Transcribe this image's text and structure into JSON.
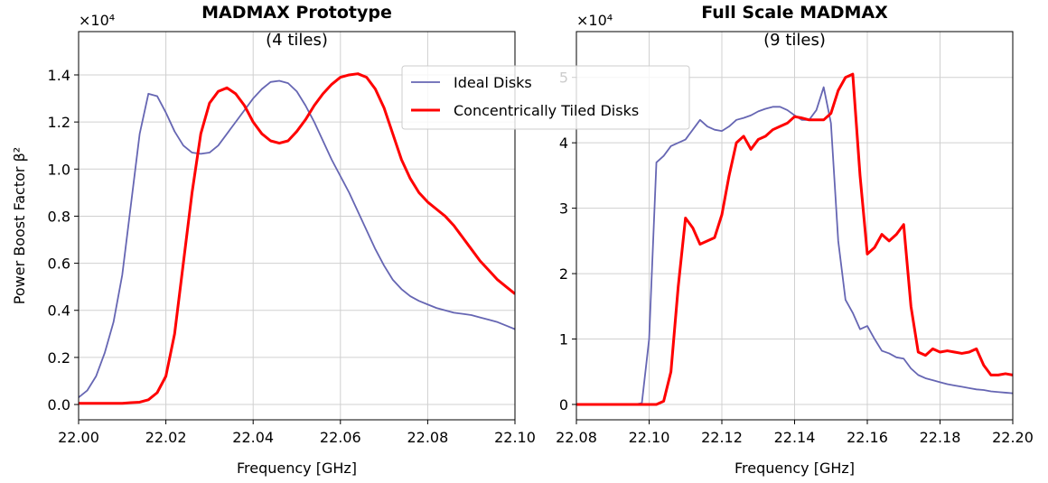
{
  "chart_data": [
    {
      "type": "line",
      "title": "MADMAX Prototype",
      "subtitle": "(4 tiles)",
      "xlabel": "Frequency [GHz]",
      "ylabel": "Power Boost Factor β²",
      "multiplier": "×10⁴",
      "x": [
        22.0,
        22.002,
        22.004,
        22.006,
        22.008,
        22.01,
        22.012,
        22.014,
        22.016,
        22.018,
        22.02,
        22.022,
        22.024,
        22.026,
        22.028,
        22.03,
        22.032,
        22.034,
        22.036,
        22.038,
        22.04,
        22.042,
        22.044,
        22.046,
        22.048,
        22.05,
        22.052,
        22.054,
        22.056,
        22.058,
        22.06,
        22.062,
        22.064,
        22.066,
        22.068,
        22.07,
        22.072,
        22.074,
        22.076,
        22.078,
        22.08,
        22.082,
        22.084,
        22.086,
        22.088,
        22.09,
        22.092,
        22.094,
        22.096,
        22.098,
        22.1
      ],
      "series": [
        {
          "name": "Ideal Disks",
          "color": "#6666b3",
          "values": [
            0.03,
            0.06,
            0.12,
            0.22,
            0.35,
            0.55,
            0.85,
            1.15,
            1.32,
            1.31,
            1.24,
            1.16,
            1.1,
            1.07,
            1.065,
            1.07,
            1.1,
            1.15,
            1.2,
            1.25,
            1.3,
            1.34,
            1.37,
            1.375,
            1.365,
            1.33,
            1.27,
            1.2,
            1.12,
            1.04,
            0.97,
            0.9,
            0.82,
            0.74,
            0.66,
            0.59,
            0.53,
            0.49,
            0.46,
            0.44,
            0.425,
            0.41,
            0.4,
            0.39,
            0.385,
            0.38,
            0.37,
            0.36,
            0.35,
            0.335,
            0.32
          ]
        },
        {
          "name": "Concentrically Tiled Disks",
          "color": "#ff0000",
          "values": [
            0.005,
            0.005,
            0.005,
            0.005,
            0.005,
            0.005,
            0.008,
            0.01,
            0.02,
            0.05,
            0.12,
            0.3,
            0.6,
            0.9,
            1.15,
            1.28,
            1.33,
            1.345,
            1.32,
            1.27,
            1.2,
            1.15,
            1.12,
            1.11,
            1.12,
            1.16,
            1.21,
            1.27,
            1.32,
            1.36,
            1.39,
            1.4,
            1.405,
            1.39,
            1.34,
            1.26,
            1.15,
            1.04,
            0.96,
            0.9,
            0.86,
            0.83,
            0.8,
            0.76,
            0.71,
            0.66,
            0.61,
            0.57,
            0.53,
            0.5,
            0.47
          ]
        }
      ],
      "xlim": [
        22.0,
        22.1
      ],
      "xticks": [
        {
          "value": 22.0,
          "label": "22.00"
        },
        22.02,
        22.04,
        22.06,
        22.08,
        {
          "value": 22.1,
          "label": "22.10"
        }
      ],
      "ylim": [
        -0.065,
        1.584
      ],
      "yticks": [
        {
          "value": 0,
          "label": "0.0"
        },
        0.2,
        0.4,
        0.6,
        0.8,
        {
          "value": 1,
          "label": "1.0"
        },
        1.2,
        1.4
      ],
      "grid": true
    },
    {
      "type": "line",
      "title": "Full Scale MADMAX",
      "subtitle": "(9 tiles)",
      "xlabel": "Frequency [GHz]",
      "multiplier": "×10⁴",
      "x": [
        22.08,
        22.082,
        22.084,
        22.086,
        22.088,
        22.09,
        22.092,
        22.094,
        22.096,
        22.098,
        22.1,
        22.102,
        22.104,
        22.106,
        22.108,
        22.11,
        22.112,
        22.114,
        22.116,
        22.118,
        22.12,
        22.122,
        22.124,
        22.126,
        22.128,
        22.13,
        22.132,
        22.134,
        22.136,
        22.138,
        22.14,
        22.142,
        22.144,
        22.146,
        22.148,
        22.15,
        22.152,
        22.154,
        22.156,
        22.158,
        22.16,
        22.162,
        22.164,
        22.166,
        22.168,
        22.17,
        22.172,
        22.174,
        22.176,
        22.178,
        22.18,
        22.182,
        22.184,
        22.186,
        22.188,
        22.19,
        22.192,
        22.194,
        22.196,
        22.198,
        22.2
      ],
      "series": [
        {
          "color": "#6666b3",
          "values": [
            0,
            0,
            0,
            0,
            0,
            0,
            0,
            0,
            0,
            0.02,
            1.0,
            3.7,
            3.8,
            3.95,
            4.0,
            4.05,
            4.2,
            4.35,
            4.25,
            4.2,
            4.18,
            4.25,
            4.35,
            4.38,
            4.42,
            4.48,
            4.52,
            4.55,
            4.55,
            4.5,
            4.42,
            4.35,
            4.35,
            4.5,
            4.85,
            4.3,
            2.5,
            1.6,
            1.4,
            1.15,
            1.2,
            1.0,
            0.82,
            0.78,
            0.72,
            0.7,
            0.55,
            0.45,
            0.4,
            0.37,
            0.34,
            0.31,
            0.29,
            0.27,
            0.25,
            0.23,
            0.22,
            0.2,
            0.19,
            0.18,
            0.17
          ]
        },
        {
          "color": "#ff0000",
          "values": [
            0,
            0,
            0,
            0,
            0,
            0,
            0,
            0,
            0,
            0,
            0,
            0,
            0.05,
            0.5,
            1.8,
            2.85,
            2.7,
            2.45,
            2.5,
            2.55,
            2.9,
            3.5,
            4.0,
            4.1,
            3.9,
            4.05,
            4.1,
            4.2,
            4.25,
            4.3,
            4.4,
            4.38,
            4.35,
            4.35,
            4.35,
            4.45,
            4.8,
            5.0,
            5.05,
            3.5,
            2.3,
            2.4,
            2.6,
            2.5,
            2.6,
            2.75,
            1.5,
            0.8,
            0.75,
            0.85,
            0.8,
            0.82,
            0.8,
            0.78,
            0.8,
            0.85,
            0.6,
            0.45,
            0.45,
            0.47,
            0.45
          ]
        }
      ],
      "xlim": [
        22.08,
        22.2
      ],
      "xticks": [
        22.08,
        {
          "value": 22.1,
          "label": "22.10"
        },
        22.12,
        22.14,
        22.16,
        22.18,
        {
          "value": 22.2,
          "label": "22.20"
        }
      ],
      "ylim": [
        -0.235,
        5.7
      ],
      "yticks": [
        0,
        1,
        2,
        3,
        4,
        5
      ],
      "grid": true
    }
  ]
}
